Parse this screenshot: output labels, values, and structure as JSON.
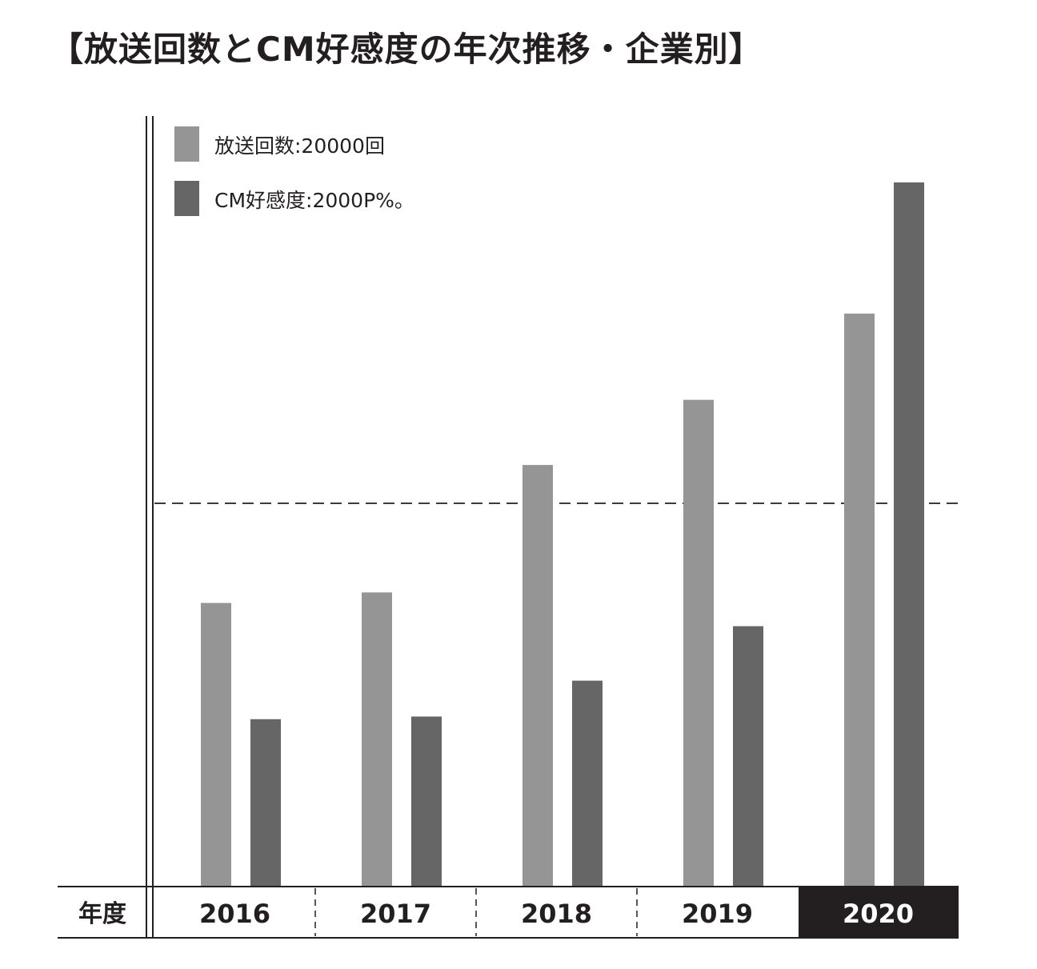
{
  "title": "【放送回数とCM好感度の年次推移・企業別】",
  "colors": {
    "series1": "#959595",
    "series2": "#666666",
    "highlight_bg": "#231f20",
    "axis": "#231f20"
  },
  "chart_data": {
    "type": "bar",
    "categories": [
      "2016",
      "2017",
      "2018",
      "2019",
      "2020"
    ],
    "highlight_category": "2020",
    "x_header": "年度",
    "series": [
      {
        "name": "放送回数:20000回",
        "values": [
          14800,
          15350,
          22000,
          25400,
          29900
        ]
      },
      {
        "name": "CM好感度:2000P%。",
        "values": [
          1260,
          1280,
          1550,
          1960,
          5300
        ]
      }
    ],
    "reference_line": {
      "series_index": 0,
      "value": 20000,
      "style": "dashed"
    },
    "grid": false,
    "legend": "top-left"
  }
}
